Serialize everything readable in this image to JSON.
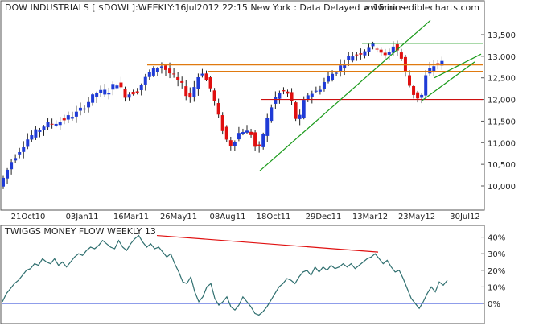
{
  "colors": {
    "background": "#ffffff",
    "panel_border": "#555555",
    "up_candle": "#1f3bd6",
    "down_candle": "#e01010",
    "neutral_candle": "#222222",
    "support_resistance": "#e07a10",
    "trendline": "#1a9a1a",
    "horizontal_red": "#cc1010",
    "money_flow_line": "#2f6f6f",
    "zero_line": "#1f3bd6",
    "divergence_line": "#e01010",
    "text": "#222222"
  },
  "header": {
    "title": "DOW INDUSTRIALS [ $DOWI ]:WEEKLY:16Jul2012 22:15 New York : Data Delayed > 15mins",
    "watermark": "www.incrediblecharts.com"
  },
  "lower_panel": {
    "title": "TWIGGS MONEY FLOW WEEKLY 13"
  },
  "chart_data": [
    {
      "type": "candlestick",
      "x_tick_labels": [
        "21Oct10",
        "03Jan11",
        "16Mar11",
        "26May11",
        "08Aug11",
        "18Oct11",
        "29Dec11",
        "13Mar12",
        "23May12",
        "30Jul12"
      ],
      "y_axis_ticks": [
        10000,
        10500,
        11000,
        11500,
        12000,
        12500,
        13000,
        13500
      ],
      "y_tick_labels": [
        "10,000",
        "10,500",
        "11,000",
        "11,500",
        "12,000",
        "12,500",
        "13,000",
        "13,500"
      ],
      "ylim": [
        9800,
        13800
      ],
      "close_estimates": [
        {
          "x": "21Oct10",
          "y": 11100
        },
        {
          "x": "03Jan11",
          "y": 11700
        },
        {
          "x": "16Mar11",
          "y": 12000
        },
        {
          "x": "26May11",
          "y": 12400
        },
        {
          "x": "08Aug11",
          "y": 11400
        },
        {
          "x": "18Oct11",
          "y": 11700
        },
        {
          "x": "29Dec11",
          "y": 12200
        },
        {
          "x": "13Mar12",
          "y": 13200
        },
        {
          "x": "23May12",
          "y": 12500
        },
        {
          "x": "16Jul12",
          "y": 12800
        }
      ],
      "annotations": {
        "support_resistance_levels": [
          12800,
          12650
        ],
        "green_resistance_level": 13300,
        "red_support_level": 12000,
        "trendlines": [
          "rising trendline from Oct 2011 low",
          "channel lines from May 2012 low"
        ]
      }
    },
    {
      "type": "line",
      "series": [
        {
          "name": "TWIGGS MONEY FLOW WEEKLY 13",
          "values": [
            0.01,
            0.06,
            0.09,
            0.12,
            0.14,
            0.17,
            0.2,
            0.21,
            0.24,
            0.23,
            0.27,
            0.25,
            0.24,
            0.27,
            0.23,
            0.25,
            0.22,
            0.25,
            0.28,
            0.3,
            0.29,
            0.32,
            0.34,
            0.33,
            0.35,
            0.38,
            0.36,
            0.34,
            0.33,
            0.38,
            0.34,
            0.32,
            0.36,
            0.39,
            0.41,
            0.37,
            0.34,
            0.36,
            0.33,
            0.34,
            0.31,
            0.28,
            0.3,
            0.24,
            0.19,
            0.13,
            0.12,
            0.16,
            0.07,
            0.01,
            0.04,
            0.1,
            0.12,
            0.03,
            -0.01,
            0.01,
            0.04,
            -0.02,
            -0.04,
            -0.01,
            0.04,
            0.01,
            -0.02,
            -0.06,
            -0.07,
            -0.05,
            -0.02,
            0.02,
            0.06,
            0.1,
            0.12,
            0.15,
            0.14,
            0.12,
            0.16,
            0.19,
            0.2,
            0.17,
            0.22,
            0.19,
            0.22,
            0.2,
            0.23,
            0.21,
            0.22,
            0.24,
            0.22,
            0.24,
            0.21,
            0.23,
            0.25,
            0.27,
            0.28,
            0.3,
            0.27,
            0.24,
            0.26,
            0.22,
            0.19,
            0.2,
            0.15,
            0.09,
            0.03,
            0,
            -0.03,
            0.01,
            0.06,
            0.1,
            0.07,
            0.13,
            0.11,
            0.14
          ]
        }
      ],
      "y_axis_ticks": [
        0,
        0.1,
        0.2,
        0.3,
        0.4
      ],
      "y_tick_labels": [
        "0%",
        "10%",
        "20%",
        "30%",
        "40%"
      ],
      "ylim": [
        -0.08,
        0.43
      ],
      "annotations": {
        "divergence_line": "falling line connecting peaks (~41% May 2011 to ~31% Mar 2012)"
      }
    }
  ]
}
